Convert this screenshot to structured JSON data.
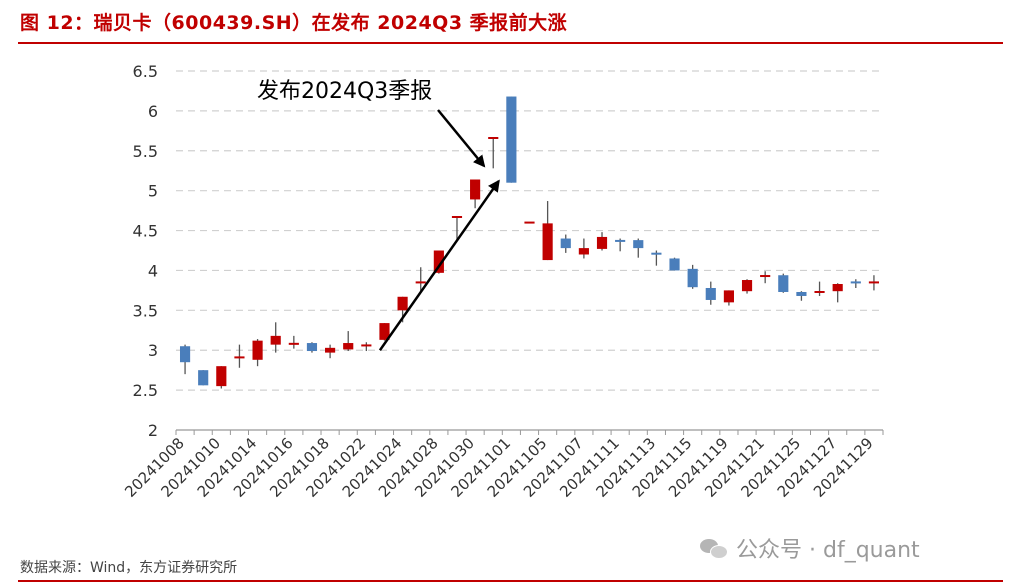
{
  "title": "图 12：瑞贝卡（600439.SH）在发布 2024Q3 季报前大涨",
  "source": "数据来源：Wind，东方证券研究所",
  "watermark": "公众号 · df_quant",
  "watermark_icon": "wechat-icon",
  "colors": {
    "up": "#c00000",
    "down": "#4a7ebb",
    "doji": "#555555",
    "title": "#c00000",
    "grid": "#d0d0d0"
  },
  "chart_data": {
    "type": "candlestick",
    "title": "",
    "xlabel": "",
    "ylabel": "",
    "ylim": [
      2,
      6.5
    ],
    "yticks": [
      2,
      2.5,
      3,
      3.5,
      4,
      4.5,
      5,
      5.5,
      6,
      6.5
    ],
    "grid": "horizontal dashed",
    "annotation": {
      "text": "发布2024Q3季报",
      "points_to": "20241031"
    },
    "trend_arrow": {
      "from": "20241023",
      "to": "20241031"
    },
    "xtick_labels": [
      "20241008",
      "20241010",
      "20241014",
      "20241016",
      "20241018",
      "20241022",
      "20241024",
      "20241028",
      "20241030",
      "20241101",
      "20241105",
      "20241107",
      "20241111",
      "20241113",
      "20241115",
      "20241119",
      "20241121",
      "20241125",
      "20241127",
      "20241129"
    ],
    "candles": [
      {
        "date": "20241008",
        "open": 3.05,
        "close": 2.85,
        "high": 3.07,
        "low": 2.7
      },
      {
        "date": "20241009",
        "open": 2.75,
        "close": 2.56,
        "high": 2.75,
        "low": 2.56
      },
      {
        "date": "20241010",
        "open": 2.55,
        "close": 2.8,
        "high": 2.8,
        "low": 2.52
      },
      {
        "date": "20241011",
        "open": 2.9,
        "close": 2.91,
        "high": 3.07,
        "low": 2.78
      },
      {
        "date": "20241014",
        "open": 2.88,
        "close": 3.12,
        "high": 3.14,
        "low": 2.8
      },
      {
        "date": "20241015",
        "open": 3.07,
        "close": 3.18,
        "high": 3.35,
        "low": 2.97
      },
      {
        "date": "20241016",
        "open": 3.07,
        "close": 3.08,
        "high": 3.18,
        "low": 3.02
      },
      {
        "date": "20241017",
        "open": 3.09,
        "close": 2.99,
        "high": 3.1,
        "low": 2.97
      },
      {
        "date": "20241018",
        "open": 2.97,
        "close": 3.03,
        "high": 3.07,
        "low": 2.9
      },
      {
        "date": "20241021",
        "open": 3.01,
        "close": 3.09,
        "high": 3.24,
        "low": 2.99
      },
      {
        "date": "20241022",
        "open": 3.05,
        "close": 3.06,
        "high": 3.1,
        "low": 2.99
      },
      {
        "date": "20241023",
        "open": 3.13,
        "close": 3.34,
        "high": 3.34,
        "low": 3.12
      },
      {
        "date": "20241024",
        "open": 3.5,
        "close": 3.67,
        "high": 3.67,
        "low": 3.35
      },
      {
        "date": "20241025",
        "open": 3.84,
        "close": 3.85,
        "high": 4.04,
        "low": 3.73
      },
      {
        "date": "20241028",
        "open": 3.97,
        "close": 4.25,
        "high": 4.25,
        "low": 3.96
      },
      {
        "date": "20241029",
        "open": 4.66,
        "close": 4.67,
        "high": 4.67,
        "low": 4.38
      },
      {
        "date": "20241030",
        "open": 4.89,
        "close": 5.14,
        "high": 5.14,
        "low": 4.78
      },
      {
        "date": "20241031",
        "open": 5.65,
        "close": 5.66,
        "high": 5.66,
        "low": 5.28
      },
      {
        "date": "20241101",
        "open": 6.18,
        "close": 5.1,
        "high": 6.18,
        "low": 5.1
      },
      {
        "date": "20241104",
        "open": 4.59,
        "close": 4.6,
        "high": 4.6,
        "low": 4.59
      },
      {
        "date": "20241105",
        "open": 4.13,
        "close": 4.59,
        "high": 4.87,
        "low": 4.13
      },
      {
        "date": "20241106",
        "open": 4.4,
        "close": 4.28,
        "high": 4.45,
        "low": 4.22
      },
      {
        "date": "20241107",
        "open": 4.2,
        "close": 4.28,
        "high": 4.4,
        "low": 4.15
      },
      {
        "date": "20241108",
        "open": 4.27,
        "close": 4.42,
        "high": 4.48,
        "low": 4.25
      },
      {
        "date": "20241111",
        "open": 4.38,
        "close": 4.37,
        "high": 4.4,
        "low": 4.24
      },
      {
        "date": "20241112",
        "open": 4.38,
        "close": 4.28,
        "high": 4.4,
        "low": 4.16
      },
      {
        "date": "20241113",
        "open": 4.22,
        "close": 4.21,
        "high": 4.25,
        "low": 4.06
      },
      {
        "date": "20241114",
        "open": 4.15,
        "close": 4.0,
        "high": 4.16,
        "low": 4.0
      },
      {
        "date": "20241115",
        "open": 4.02,
        "close": 3.79,
        "high": 4.07,
        "low": 3.77
      },
      {
        "date": "20241118",
        "open": 3.78,
        "close": 3.63,
        "high": 3.86,
        "low": 3.57
      },
      {
        "date": "20241119",
        "open": 3.6,
        "close": 3.75,
        "high": 3.75,
        "low": 3.56
      },
      {
        "date": "20241120",
        "open": 3.74,
        "close": 3.88,
        "high": 3.89,
        "low": 3.71
      },
      {
        "date": "20241121",
        "open": 3.92,
        "close": 3.93,
        "high": 3.99,
        "low": 3.84
      },
      {
        "date": "20241122",
        "open": 3.94,
        "close": 3.73,
        "high": 3.96,
        "low": 3.72
      },
      {
        "date": "20241125",
        "open": 3.73,
        "close": 3.68,
        "high": 3.74,
        "low": 3.62
      },
      {
        "date": "20241126",
        "open": 3.72,
        "close": 3.73,
        "high": 3.86,
        "low": 3.68
      },
      {
        "date": "20241127",
        "open": 3.74,
        "close": 3.83,
        "high": 3.84,
        "low": 3.6
      },
      {
        "date": "20241128",
        "open": 3.86,
        "close": 3.85,
        "high": 3.89,
        "low": 3.78
      },
      {
        "date": "20241129",
        "open": 3.84,
        "close": 3.85,
        "high": 3.94,
        "low": 3.75
      }
    ]
  }
}
